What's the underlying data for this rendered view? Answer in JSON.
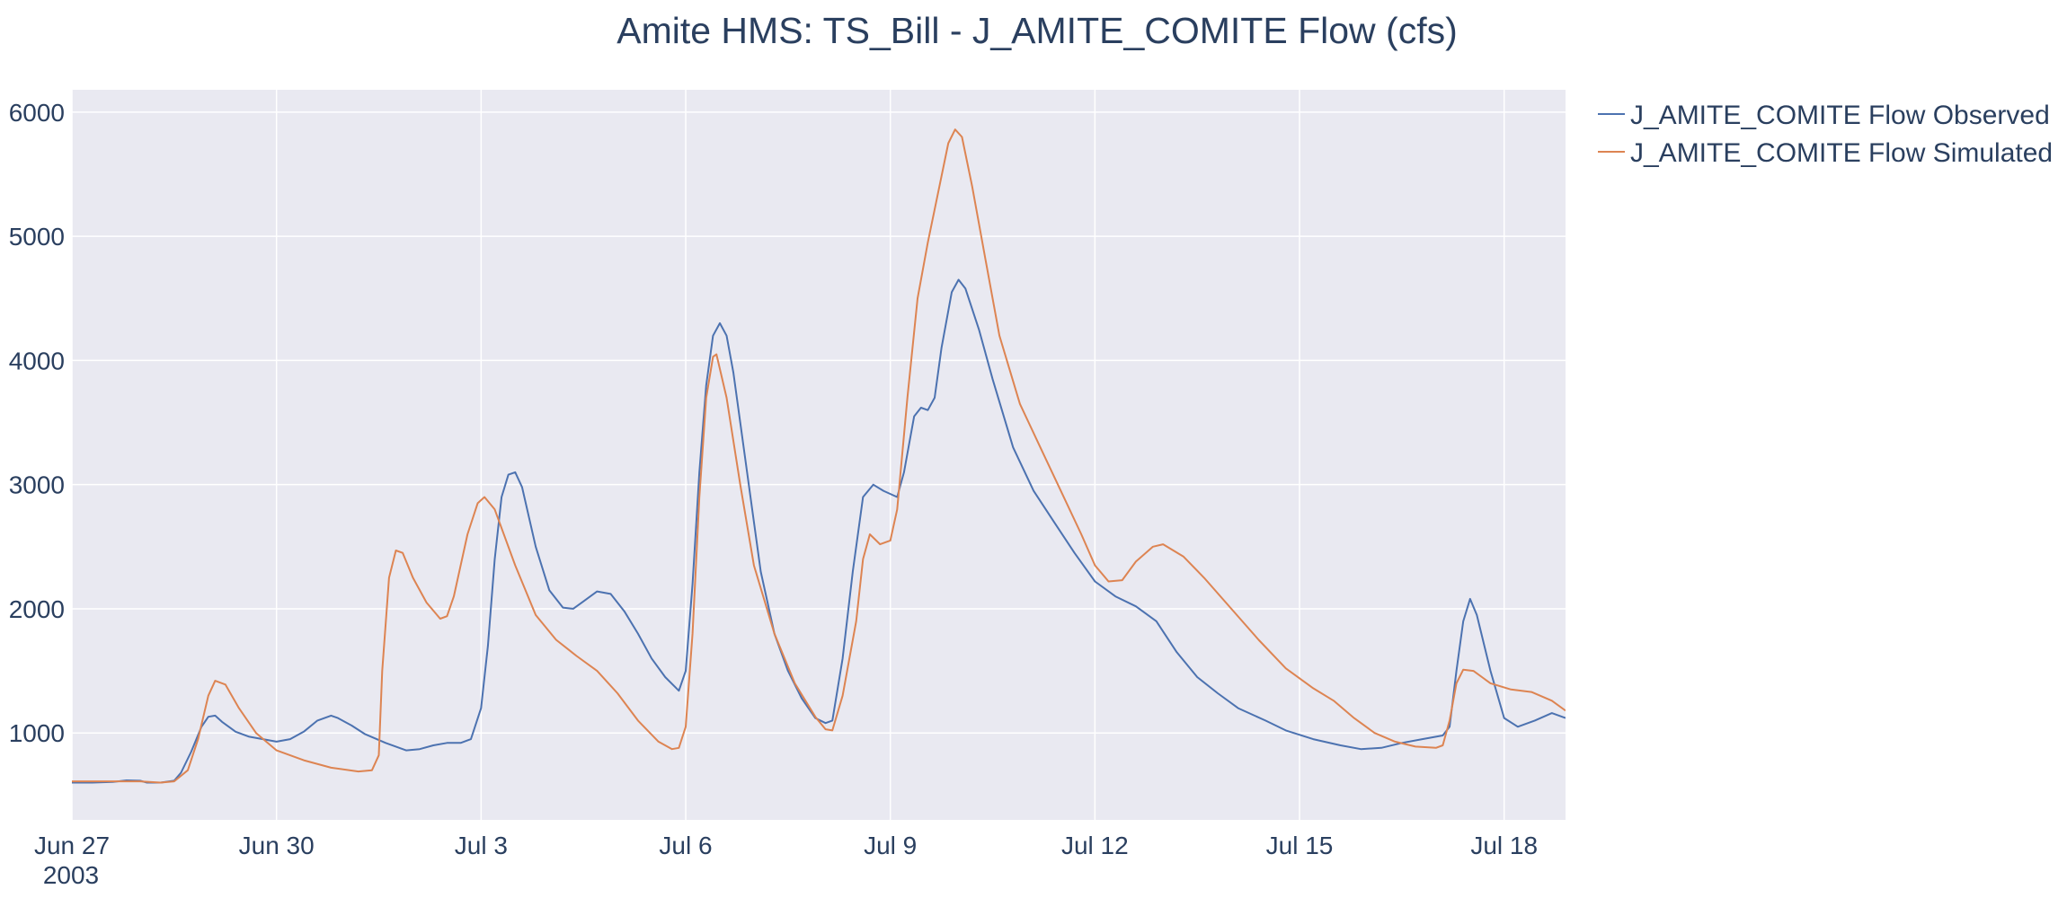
{
  "chart_data": {
    "type": "line",
    "title": "Amite HMS: TS_Bill - J_AMITE_COMITE Flow (cfs)",
    "xlabel": "",
    "ylabel": "",
    "x_tick_labels": [
      "Jun 27",
      "Jun 30",
      "Jul 3",
      "Jul 6",
      "Jul 9",
      "Jul 12",
      "Jul 15",
      "Jul 18"
    ],
    "x_year_label": "2003",
    "y_tick_labels": [
      "1000",
      "2000",
      "3000",
      "4000",
      "5000",
      "6000"
    ],
    "x_unit": "days since Jun 27 2003",
    "xlim": [
      0,
      21.9
    ],
    "ylim": [
      300,
      6180
    ],
    "grid": true,
    "legend_position": "top-right (outside plot)",
    "plot_background": "#e9e9f1",
    "series": [
      {
        "name": "J_AMITE_COMITE Flow Observed",
        "color": "#4c72b0",
        "points": [
          [
            0,
            600
          ],
          [
            0.3,
            600
          ],
          [
            0.6,
            605
          ],
          [
            0.8,
            618
          ],
          [
            1.0,
            615
          ],
          [
            1.1,
            600
          ],
          [
            1.3,
            600
          ],
          [
            1.5,
            615
          ],
          [
            1.6,
            680
          ],
          [
            1.75,
            850
          ],
          [
            1.9,
            1050
          ],
          [
            2.0,
            1130
          ],
          [
            2.1,
            1140
          ],
          [
            2.2,
            1090
          ],
          [
            2.4,
            1010
          ],
          [
            2.6,
            970
          ],
          [
            2.8,
            950
          ],
          [
            3.0,
            930
          ],
          [
            3.2,
            950
          ],
          [
            3.4,
            1010
          ],
          [
            3.6,
            1100
          ],
          [
            3.8,
            1140
          ],
          [
            3.9,
            1120
          ],
          [
            4.1,
            1060
          ],
          [
            4.3,
            990
          ],
          [
            4.6,
            920
          ],
          [
            4.9,
            860
          ],
          [
            5.1,
            870
          ],
          [
            5.3,
            900
          ],
          [
            5.5,
            920
          ],
          [
            5.7,
            920
          ],
          [
            5.85,
            950
          ],
          [
            6.0,
            1200
          ],
          [
            6.1,
            1700
          ],
          [
            6.2,
            2400
          ],
          [
            6.3,
            2900
          ],
          [
            6.4,
            3080
          ],
          [
            6.5,
            3100
          ],
          [
            6.6,
            2980
          ],
          [
            6.8,
            2500
          ],
          [
            7.0,
            2150
          ],
          [
            7.2,
            2010
          ],
          [
            7.35,
            2000
          ],
          [
            7.5,
            2060
          ],
          [
            7.7,
            2140
          ],
          [
            7.9,
            2120
          ],
          [
            8.1,
            1980
          ],
          [
            8.3,
            1800
          ],
          [
            8.5,
            1600
          ],
          [
            8.7,
            1450
          ],
          [
            8.9,
            1340
          ],
          [
            9.0,
            1500
          ],
          [
            9.1,
            2200
          ],
          [
            9.2,
            3100
          ],
          [
            9.3,
            3800
          ],
          [
            9.4,
            4200
          ],
          [
            9.5,
            4300
          ],
          [
            9.6,
            4200
          ],
          [
            9.7,
            3900
          ],
          [
            9.9,
            3100
          ],
          [
            10.1,
            2300
          ],
          [
            10.3,
            1800
          ],
          [
            10.5,
            1500
          ],
          [
            10.7,
            1280
          ],
          [
            10.9,
            1120
          ],
          [
            11.05,
            1080
          ],
          [
            11.15,
            1100
          ],
          [
            11.3,
            1600
          ],
          [
            11.45,
            2300
          ],
          [
            11.6,
            2900
          ],
          [
            11.75,
            3000
          ],
          [
            11.9,
            2950
          ],
          [
            12.1,
            2900
          ],
          [
            12.2,
            3100
          ],
          [
            12.35,
            3550
          ],
          [
            12.45,
            3620
          ],
          [
            12.55,
            3600
          ],
          [
            12.65,
            3700
          ],
          [
            12.75,
            4100
          ],
          [
            12.9,
            4550
          ],
          [
            13.0,
            4650
          ],
          [
            13.1,
            4580
          ],
          [
            13.3,
            4250
          ],
          [
            13.5,
            3850
          ],
          [
            13.8,
            3300
          ],
          [
            14.1,
            2950
          ],
          [
            14.4,
            2700
          ],
          [
            14.7,
            2450
          ],
          [
            15.0,
            2220
          ],
          [
            15.3,
            2100
          ],
          [
            15.6,
            2020
          ],
          [
            15.9,
            1900
          ],
          [
            16.2,
            1650
          ],
          [
            16.5,
            1450
          ],
          [
            16.8,
            1320
          ],
          [
            17.1,
            1200
          ],
          [
            17.5,
            1100
          ],
          [
            17.8,
            1020
          ],
          [
            18.2,
            950
          ],
          [
            18.6,
            900
          ],
          [
            18.9,
            870
          ],
          [
            19.2,
            880
          ],
          [
            19.5,
            920
          ],
          [
            19.8,
            950
          ],
          [
            20.1,
            980
          ],
          [
            20.2,
            1050
          ],
          [
            20.3,
            1500
          ],
          [
            20.4,
            1900
          ],
          [
            20.5,
            2080
          ],
          [
            20.6,
            1950
          ],
          [
            20.8,
            1500
          ],
          [
            21.0,
            1120
          ],
          [
            21.2,
            1050
          ],
          [
            21.45,
            1100
          ],
          [
            21.7,
            1160
          ],
          [
            21.9,
            1120
          ]
        ]
      },
      {
        "name": "J_AMITE_COMITE Flow Simulated",
        "color": "#dd8452",
        "points": [
          [
            0,
            610
          ],
          [
            0.5,
            610
          ],
          [
            1.0,
            610
          ],
          [
            1.3,
            600
          ],
          [
            1.5,
            610
          ],
          [
            1.7,
            700
          ],
          [
            1.85,
            950
          ],
          [
            2.0,
            1300
          ],
          [
            2.1,
            1420
          ],
          [
            2.25,
            1390
          ],
          [
            2.45,
            1200
          ],
          [
            2.7,
            1000
          ],
          [
            3.0,
            860
          ],
          [
            3.4,
            780
          ],
          [
            3.8,
            720
          ],
          [
            4.2,
            690
          ],
          [
            4.4,
            700
          ],
          [
            4.5,
            820
          ],
          [
            4.55,
            1500
          ],
          [
            4.65,
            2250
          ],
          [
            4.75,
            2470
          ],
          [
            4.85,
            2450
          ],
          [
            5.0,
            2250
          ],
          [
            5.2,
            2050
          ],
          [
            5.4,
            1920
          ],
          [
            5.5,
            1940
          ],
          [
            5.6,
            2100
          ],
          [
            5.8,
            2600
          ],
          [
            5.95,
            2850
          ],
          [
            6.05,
            2900
          ],
          [
            6.2,
            2800
          ],
          [
            6.5,
            2350
          ],
          [
            6.8,
            1950
          ],
          [
            7.1,
            1750
          ],
          [
            7.4,
            1620
          ],
          [
            7.7,
            1500
          ],
          [
            8.0,
            1320
          ],
          [
            8.3,
            1100
          ],
          [
            8.6,
            930
          ],
          [
            8.8,
            870
          ],
          [
            8.9,
            880
          ],
          [
            9.0,
            1050
          ],
          [
            9.1,
            1800
          ],
          [
            9.2,
            2900
          ],
          [
            9.3,
            3700
          ],
          [
            9.4,
            4030
          ],
          [
            9.45,
            4050
          ],
          [
            9.6,
            3700
          ],
          [
            9.8,
            3000
          ],
          [
            10.0,
            2350
          ],
          [
            10.3,
            1800
          ],
          [
            10.6,
            1400
          ],
          [
            10.9,
            1130
          ],
          [
            11.05,
            1030
          ],
          [
            11.15,
            1020
          ],
          [
            11.3,
            1300
          ],
          [
            11.5,
            1900
          ],
          [
            11.6,
            2400
          ],
          [
            11.7,
            2600
          ],
          [
            11.85,
            2520
          ],
          [
            12.0,
            2550
          ],
          [
            12.1,
            2800
          ],
          [
            12.25,
            3700
          ],
          [
            12.4,
            4500
          ],
          [
            12.55,
            4950
          ],
          [
            12.7,
            5350
          ],
          [
            12.85,
            5750
          ],
          [
            12.95,
            5860
          ],
          [
            13.05,
            5800
          ],
          [
            13.2,
            5400
          ],
          [
            13.4,
            4800
          ],
          [
            13.6,
            4200
          ],
          [
            13.9,
            3650
          ],
          [
            14.2,
            3300
          ],
          [
            14.5,
            2950
          ],
          [
            14.8,
            2600
          ],
          [
            15.0,
            2350
          ],
          [
            15.2,
            2220
          ],
          [
            15.4,
            2230
          ],
          [
            15.6,
            2380
          ],
          [
            15.85,
            2500
          ],
          [
            16.0,
            2520
          ],
          [
            16.3,
            2420
          ],
          [
            16.6,
            2250
          ],
          [
            17.0,
            2000
          ],
          [
            17.4,
            1750
          ],
          [
            17.8,
            1520
          ],
          [
            18.2,
            1360
          ],
          [
            18.5,
            1260
          ],
          [
            18.8,
            1120
          ],
          [
            19.1,
            1000
          ],
          [
            19.4,
            930
          ],
          [
            19.7,
            890
          ],
          [
            20.0,
            880
          ],
          [
            20.1,
            900
          ],
          [
            20.2,
            1100
          ],
          [
            20.3,
            1400
          ],
          [
            20.4,
            1510
          ],
          [
            20.55,
            1500
          ],
          [
            20.8,
            1400
          ],
          [
            21.1,
            1350
          ],
          [
            21.4,
            1330
          ],
          [
            21.7,
            1260
          ],
          [
            21.9,
            1180
          ]
        ]
      }
    ]
  }
}
